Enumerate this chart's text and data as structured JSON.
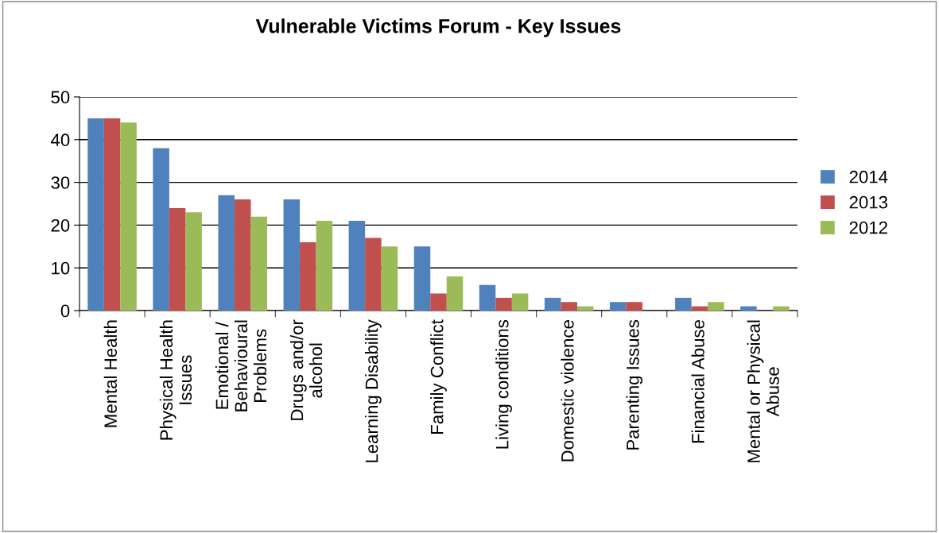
{
  "chart_data": {
    "type": "bar",
    "title": "Vulnerable Victims Forum - Key Issues",
    "categories": [
      "Mental Health",
      "Physical Health\nIssues",
      "Emotional /\nBehavioural\nProblems",
      "Drugs and/or\nalcohol",
      "Learning Disability",
      "Family Conflict",
      "Living conditions",
      "Domestic violence",
      "Parenting Issues",
      "Financial Abuse",
      "Mental or Physical\nAbuse"
    ],
    "series": [
      {
        "name": "2014",
        "color": "#4f81bd",
        "values": [
          45,
          38,
          27,
          26,
          21,
          15,
          6,
          3,
          2,
          3,
          1
        ]
      },
      {
        "name": "2013",
        "color": "#c0504d",
        "values": [
          45,
          24,
          26,
          16,
          17,
          4,
          3,
          2,
          2,
          1,
          0
        ]
      },
      {
        "name": "2012",
        "color": "#9bbb59",
        "values": [
          44,
          23,
          22,
          21,
          15,
          8,
          4,
          1,
          0,
          2,
          1
        ]
      }
    ],
    "ylim": [
      0,
      50
    ],
    "yticks": [
      0,
      10,
      20,
      30,
      40,
      50
    ],
    "grid": "y",
    "legend": "right"
  }
}
